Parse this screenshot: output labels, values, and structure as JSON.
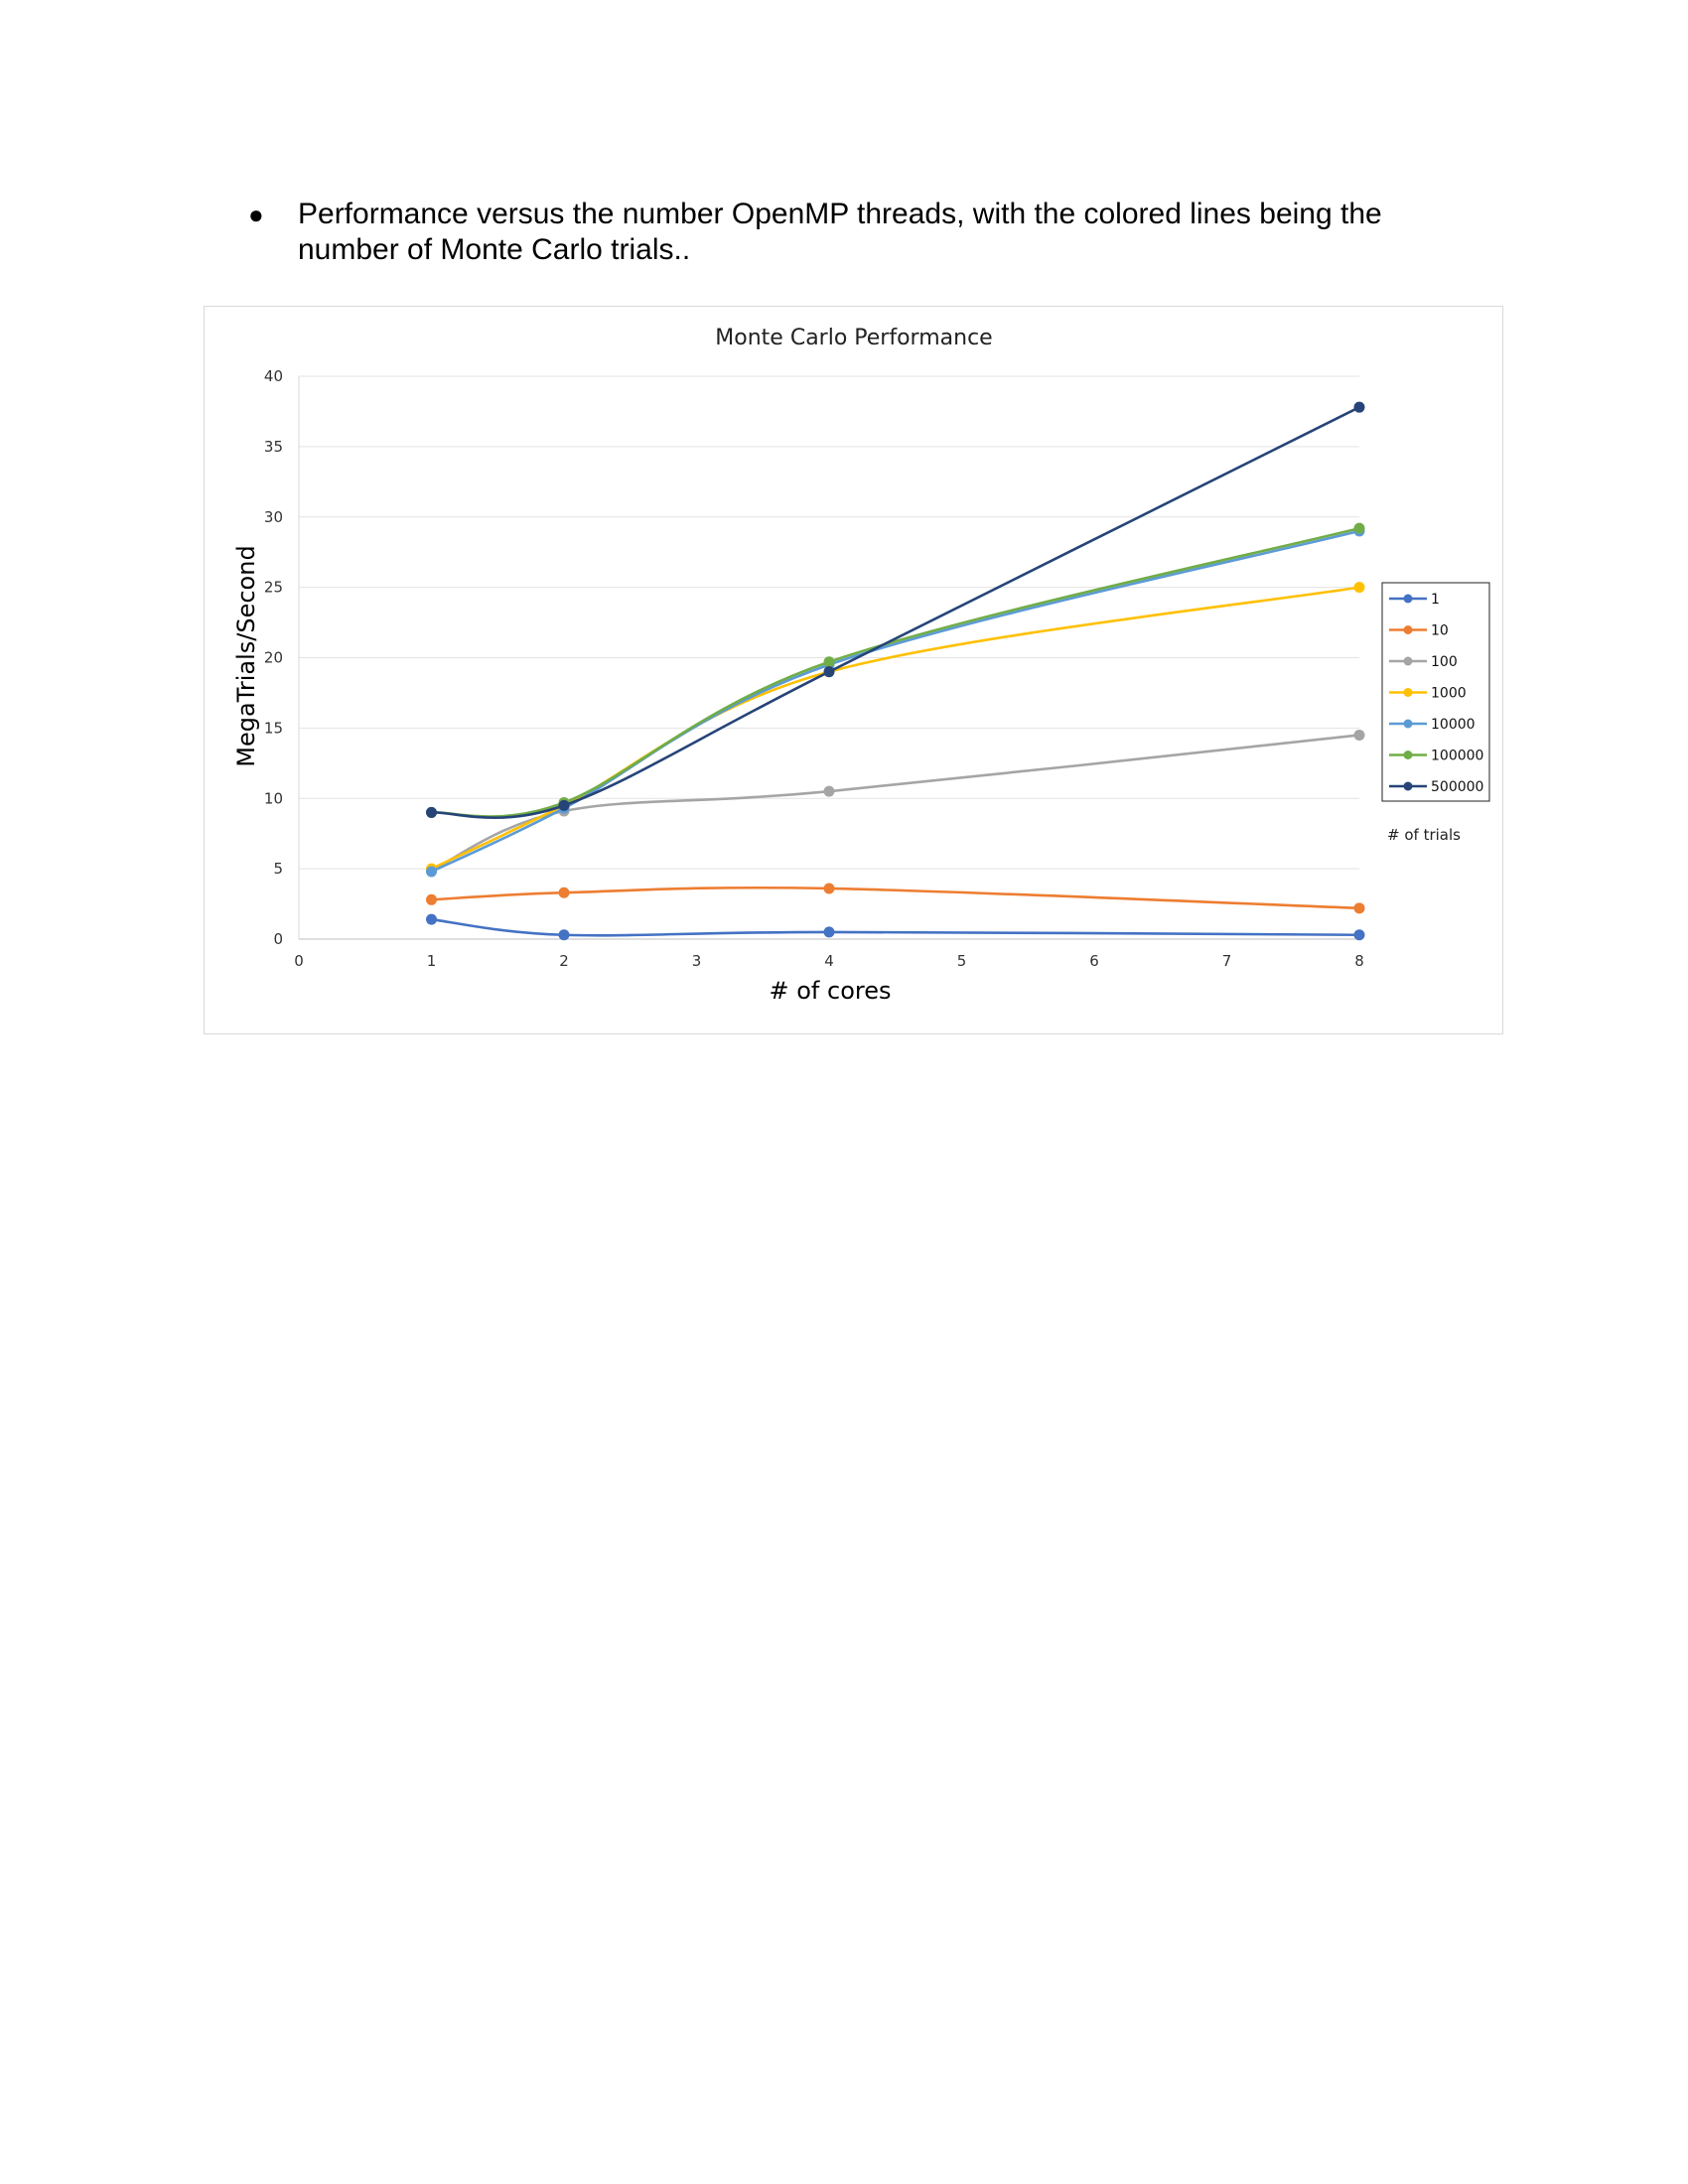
{
  "document": {
    "bullet_symbol": "●",
    "bullet_text": "Performance versus the number OpenMP threads, with the colored lines being the number of Monte Carlo trials.."
  },
  "chart_data": {
    "type": "line",
    "title": "Monte Carlo Performance",
    "xlabel": "# of cores",
    "ylabel": "MegaTrials/Second",
    "xlim": [
      0,
      8
    ],
    "ylim": [
      0,
      40
    ],
    "x_ticks": [
      0,
      1,
      2,
      3,
      4,
      5,
      6,
      7,
      8
    ],
    "y_ticks": [
      0,
      5,
      10,
      15,
      20,
      25,
      30,
      35,
      40
    ],
    "grid": true,
    "legend_title": "# of trials",
    "legend_position": "right",
    "x": [
      1,
      2,
      4,
      8
    ],
    "series": [
      {
        "name": "1",
        "color": "#4472c4",
        "values": [
          1.4,
          0.3,
          0.5,
          0.3
        ]
      },
      {
        "name": "10",
        "color": "#ed7d31",
        "values": [
          2.8,
          3.3,
          3.6,
          2.2
        ]
      },
      {
        "name": "100",
        "color": "#a5a5a5",
        "values": [
          4.9,
          9.1,
          10.5,
          14.5
        ]
      },
      {
        "name": "1000",
        "color": "#ffc000",
        "values": [
          5.0,
          9.5,
          19.0,
          25.0
        ]
      },
      {
        "name": "10000",
        "color": "#5b9bd5",
        "values": [
          4.8,
          9.3,
          19.5,
          29.0
        ]
      },
      {
        "name": "100000",
        "color": "#70ad47",
        "values": [
          9.0,
          9.7,
          19.7,
          29.2
        ]
      },
      {
        "name": "500000",
        "color": "#264478",
        "values": [
          9.0,
          9.5,
          19.0,
          37.8
        ]
      }
    ]
  }
}
